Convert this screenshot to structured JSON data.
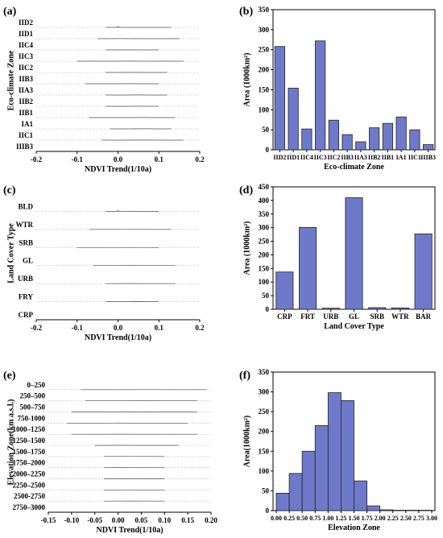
{
  "figure": {
    "panels": [
      {
        "id": "a",
        "label": "(a)",
        "type": "ridgeline",
        "xlabel": "NDVI Trend(1/10a)",
        "ylabel": "Eco-climate Zone",
        "xlim": [
          -0.2,
          0.2
        ],
        "xticks": [
          "-0.2",
          "-0.1",
          "0.0",
          "0.1",
          "0.2"
        ],
        "series": [
          {
            "name": "IID2",
            "mode": 0.0,
            "sd": 0.004,
            "min": -0.03,
            "max": 0.13,
            "color": "red"
          },
          {
            "name": "IID1",
            "mode": 0.005,
            "sd": 0.012,
            "min": -0.05,
            "max": 0.15,
            "color": "green"
          },
          {
            "name": "IIC4",
            "mode": 0.02,
            "sd": 0.015,
            "min": -0.03,
            "max": 0.1,
            "color": "green"
          },
          {
            "name": "IIC3",
            "mode": 0.03,
            "sd": 0.02,
            "min": -0.1,
            "max": 0.16,
            "color": "green"
          },
          {
            "name": "IIC2",
            "mode": 0.03,
            "sd": 0.02,
            "min": -0.03,
            "max": 0.12,
            "color": "green"
          },
          {
            "name": "IIB3",
            "mode": 0.03,
            "sd": 0.015,
            "min": -0.08,
            "max": 0.1,
            "color": "green"
          },
          {
            "name": "IIA3",
            "mode": 0.045,
            "sd": 0.012,
            "min": -0.03,
            "max": 0.12,
            "color": "green"
          },
          {
            "name": "IIB2",
            "mode": 0.05,
            "sd": 0.012,
            "min": -0.03,
            "max": 0.1,
            "color": "green"
          },
          {
            "name": "IIB1",
            "mode": 0.06,
            "sd": 0.012,
            "min": -0.07,
            "max": 0.14,
            "color": "green"
          },
          {
            "name": "IA1",
            "mode": 0.06,
            "sd": 0.015,
            "min": -0.02,
            "max": 0.13,
            "color": "green"
          },
          {
            "name": "IIC1",
            "mode": 0.06,
            "sd": 0.025,
            "min": -0.04,
            "max": 0.16,
            "color": "green"
          },
          {
            "name": "IIIB3",
            "mode": 0.08,
            "sd": 0.02,
            "min": 0.0,
            "max": 0.16,
            "color": "green"
          }
        ]
      },
      {
        "id": "b",
        "label": "(b)",
        "type": "bar",
        "xlabel": "Eco-climate Zone",
        "ylabel": "Area (1000km²)",
        "ylim": [
          0,
          350
        ],
        "yticks": [
          0,
          50,
          100,
          150,
          200,
          250,
          300,
          350
        ],
        "categories": [
          "IID2",
          "IID1",
          "IIC4",
          "IIC3",
          "IIC2",
          "IIB3",
          "IIA3",
          "IIB2",
          "IIB1",
          "IA1",
          "IIC1",
          "IIIB3"
        ],
        "values": [
          258,
          154,
          52,
          272,
          74,
          38,
          20,
          55,
          66,
          82,
          50,
          13
        ]
      },
      {
        "id": "c",
        "label": "(c)",
        "type": "ridgeline",
        "xlabel": "NDVI Trend(1/10a)",
        "ylabel": "Land Cover Type",
        "xlim": [
          -0.2,
          0.2
        ],
        "xticks": [
          "-0.2",
          "-0.1",
          "0.0",
          "0.1",
          "0.2"
        ],
        "series": [
          {
            "name": "BLD",
            "mode": 0.0,
            "sd": 0.004,
            "min": -0.03,
            "max": 0.1,
            "color": "red"
          },
          {
            "name": "WTR",
            "mode": 0.01,
            "sd": 0.03,
            "min": -0.07,
            "max": 0.13,
            "color": "green"
          },
          {
            "name": "SRB",
            "mode": 0.03,
            "sd": 0.02,
            "min": -0.1,
            "max": 0.1,
            "color": "green"
          },
          {
            "name": "GL",
            "mode": 0.03,
            "sd": 0.02,
            "min": -0.06,
            "max": 0.14,
            "color": "green"
          },
          {
            "name": "URB",
            "mode": 0.03,
            "sd": 0.025,
            "min": -0.03,
            "max": 0.14,
            "color": "green"
          },
          {
            "name": "FRY",
            "mode": 0.05,
            "sd": 0.01,
            "min": -0.03,
            "max": 0.1,
            "color": "green"
          },
          {
            "name": "CRP",
            "mode": 0.05,
            "sd": 0.025,
            "min": -0.02,
            "max": 0.14,
            "color": "green"
          }
        ]
      },
      {
        "id": "d",
        "label": "(d)",
        "type": "bar",
        "xlabel": "Land Cover Type",
        "ylabel": "Area (1000km²)",
        "ylim": [
          0,
          450
        ],
        "yticks": [
          0,
          50,
          100,
          150,
          200,
          250,
          300,
          350,
          400,
          450
        ],
        "categories": [
          "CRP",
          "FRT",
          "URB",
          "GL",
          "SRB",
          "WTR",
          "BAR"
        ],
        "values": [
          137,
          301,
          4,
          410,
          6,
          5,
          277
        ]
      },
      {
        "id": "e",
        "label": "(e)",
        "type": "ridgeline",
        "xlabel": "NDVI Trend(1/10a)",
        "ylabel": "Elevation Zone(km a.s.l.)",
        "xlim": [
          -0.15,
          0.2
        ],
        "xticks": [
          "-0.15",
          "-0.10",
          "-0.05",
          "0.00",
          "0.05",
          "0.10",
          "0.15",
          "0.20"
        ],
        "series": [
          {
            "name": "0–250",
            "mode": 0.07,
            "sd": 0.025,
            "min": -0.08,
            "max": 0.19,
            "color": "green"
          },
          {
            "name": "250–500",
            "mode": 0.05,
            "sd": 0.025,
            "min": -0.07,
            "max": 0.17,
            "color": "green"
          },
          {
            "name": "500–750",
            "mode": 0.05,
            "sd": 0.02,
            "min": -0.1,
            "max": 0.17,
            "color": "green"
          },
          {
            "name": "750-1000",
            "mode": 0.0,
            "sd": 0.015,
            "min": -0.11,
            "max": 0.15,
            "color": "green"
          },
          {
            "name": "1000–1250",
            "mode": 0.0,
            "sd": 0.02,
            "min": -0.1,
            "max": 0.17,
            "color": "green"
          },
          {
            "name": "1250–1500",
            "mode": 0.0,
            "sd": 0.015,
            "min": -0.05,
            "max": 0.13,
            "color": "green"
          },
          {
            "name": "1500–1750",
            "mode": 0.01,
            "sd": 0.015,
            "min": -0.03,
            "max": 0.1,
            "color": "green"
          },
          {
            "name": "1750–2000",
            "mode": 0.01,
            "sd": 0.015,
            "min": -0.03,
            "max": 0.1,
            "color": "green"
          },
          {
            "name": "2000–2250",
            "mode": 0.02,
            "sd": 0.015,
            "min": -0.03,
            "max": 0.1,
            "color": "green"
          },
          {
            "name": "2250–2500",
            "mode": 0.02,
            "sd": 0.015,
            "min": -0.03,
            "max": 0.1,
            "color": "green"
          },
          {
            "name": "2500-2750",
            "mode": 0.03,
            "sd": 0.018,
            "min": -0.03,
            "max": 0.1,
            "color": "green"
          },
          {
            "name": "2750–3000",
            "mode": 0.04,
            "sd": 0.02,
            "min": -0.03,
            "max": 0.1,
            "color": "green"
          }
        ]
      },
      {
        "id": "f",
        "label": "(f)",
        "type": "bar",
        "xlabel": "Elevation Zone",
        "ylabel": "Area(1000km²)",
        "ylim": [
          0,
          350
        ],
        "yticks": [
          0,
          50,
          100,
          150,
          200,
          250,
          300,
          350
        ],
        "xticks": [
          "0.00",
          "0.25",
          "0.50",
          "0.75",
          "1.00",
          "1.25",
          "1.50",
          "1.75",
          "2.00",
          "2.25",
          "2.50",
          "2.75",
          "3.00"
        ],
        "bins": [
          [
            0.0,
            0.25
          ],
          [
            0.25,
            0.5
          ],
          [
            0.5,
            0.75
          ],
          [
            0.75,
            1.0
          ],
          [
            1.0,
            1.25
          ],
          [
            1.25,
            1.5
          ],
          [
            1.5,
            1.75
          ],
          [
            1.75,
            2.0
          ],
          [
            2.0,
            2.25
          ],
          [
            2.25,
            2.5
          ],
          [
            2.5,
            2.75
          ],
          [
            2.75,
            3.0
          ]
        ],
        "values": [
          44,
          94,
          150,
          215,
          298,
          278,
          75,
          12,
          2,
          1,
          1,
          1
        ]
      }
    ]
  }
}
